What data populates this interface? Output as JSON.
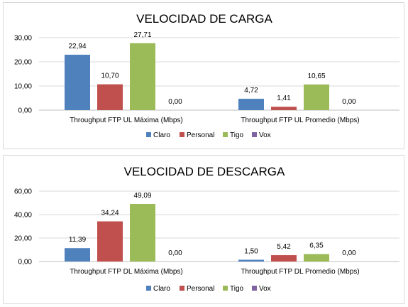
{
  "chart_data": [
    {
      "type": "bar",
      "title": "VELOCIDAD DE CARGA",
      "categories": [
        "Throughput FTP UL Máxima (Mbps)",
        "Throughput FTP UL Promedio (Mbps)"
      ],
      "series": [
        {
          "name": "Claro",
          "color": "#4F81BD",
          "values": [
            22.94,
            4.72
          ],
          "labels": [
            "22,94",
            "4,72"
          ]
        },
        {
          "name": "Personal",
          "color": "#C0504D",
          "values": [
            10.7,
            1.41
          ],
          "labels": [
            "10,70",
            "1,41"
          ]
        },
        {
          "name": "Tigo",
          "color": "#9BBB59",
          "values": [
            27.71,
            10.65
          ],
          "labels": [
            "27,71",
            "10,65"
          ]
        },
        {
          "name": "Vox",
          "color": "#8064A2",
          "values": [
            0.0,
            0.0
          ],
          "labels": [
            "0,00",
            "0,00"
          ]
        }
      ],
      "ylim": [
        0,
        30
      ],
      "yticks": [
        "0,00",
        "10,00",
        "20,00",
        "30,00"
      ],
      "grid": true,
      "legend": "bottom"
    },
    {
      "type": "bar",
      "title": "VELOCIDAD DE DESCARGA",
      "categories": [
        "Throughput FTP DL Máxima (Mbps)",
        "Throughput FTP DL Promedio (Mbps)"
      ],
      "series": [
        {
          "name": "Claro",
          "color": "#4F81BD",
          "values": [
            11.39,
            1.5
          ],
          "labels": [
            "11,39",
            "1,50"
          ]
        },
        {
          "name": "Personal",
          "color": "#C0504D",
          "values": [
            34.24,
            5.42
          ],
          "labels": [
            "34,24",
            "5,42"
          ]
        },
        {
          "name": "Tigo",
          "color": "#9BBB59",
          "values": [
            49.09,
            6.35
          ],
          "labels": [
            "49,09",
            "6,35"
          ]
        },
        {
          "name": "Vox",
          "color": "#8064A2",
          "values": [
            0.0,
            0.0
          ],
          "labels": [
            "0,00",
            "0,00"
          ]
        }
      ],
      "ylim": [
        0,
        60
      ],
      "yticks": [
        "0,00",
        "20,00",
        "40,00",
        "60,00"
      ],
      "grid": true,
      "legend": "bottom"
    }
  ]
}
